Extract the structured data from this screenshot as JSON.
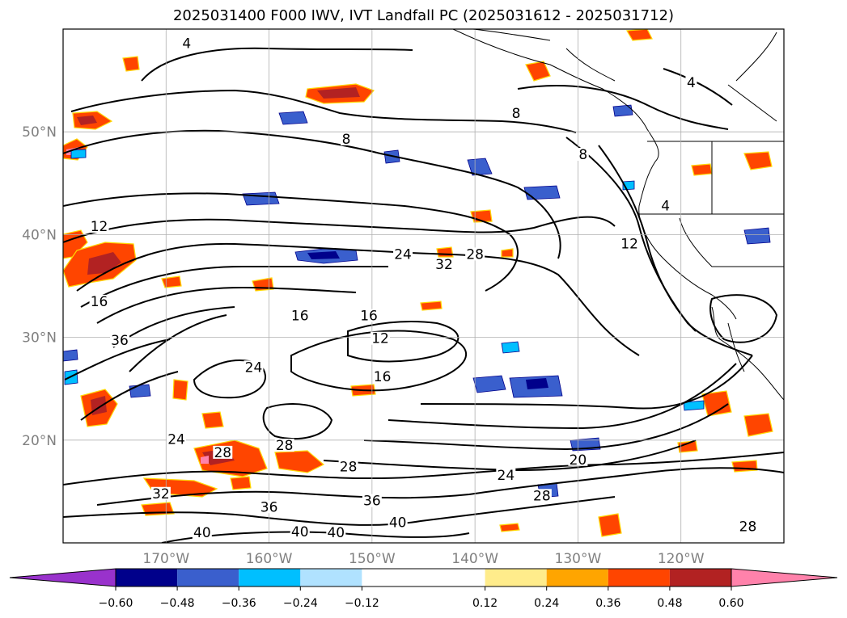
{
  "title": "2025031400 F000 IWV, IVT Landfall PC (2025031612 - 2025031712)",
  "map": {
    "lon_range": [
      -180,
      -110
    ],
    "lat_range": [
      10,
      60
    ],
    "lon_ticks": [
      {
        "value": -170,
        "label": "170°W"
      },
      {
        "value": -160,
        "label": "160°W"
      },
      {
        "value": -150,
        "label": "150°W"
      },
      {
        "value": -140,
        "label": "140°W"
      },
      {
        "value": -130,
        "label": "130°W"
      },
      {
        "value": -120,
        "label": "120°W"
      }
    ],
    "lat_ticks": [
      {
        "value": 50,
        "label": "50°N"
      },
      {
        "value": 40,
        "label": "40°N"
      },
      {
        "value": 30,
        "label": "30°N"
      },
      {
        "value": 20,
        "label": "20°N"
      }
    ],
    "grid": true,
    "iwv_contour_labels": [
      {
        "text": "4",
        "lon": -168,
        "lat": 58.3
      },
      {
        "text": "4",
        "lon": -119,
        "lat": 54.5
      },
      {
        "text": "8",
        "lon": -136,
        "lat": 51.5
      },
      {
        "text": "8",
        "lon": -152.5,
        "lat": 49
      },
      {
        "text": "8",
        "lon": -129.5,
        "lat": 47.5
      },
      {
        "text": "4",
        "lon": -121.5,
        "lat": 42.5
      },
      {
        "text": "12",
        "lon": -176.5,
        "lat": 40.5
      },
      {
        "text": "24",
        "lon": -147,
        "lat": 37.8
      },
      {
        "text": "32",
        "lon": -143,
        "lat": 36.8
      },
      {
        "text": "28",
        "lon": -140,
        "lat": 37.8
      },
      {
        "text": "12",
        "lon": -125,
        "lat": 38.8
      },
      {
        "text": "16",
        "lon": -176.5,
        "lat": 33.2
      },
      {
        "text": "16",
        "lon": -157,
        "lat": 31.8
      },
      {
        "text": "16",
        "lon": -150.3,
        "lat": 31.8
      },
      {
        "text": "12",
        "lon": -149.2,
        "lat": 29.6
      },
      {
        "text": "36",
        "lon": -174.5,
        "lat": 29.4
      },
      {
        "text": "16",
        "lon": -149,
        "lat": 25.9
      },
      {
        "text": "24",
        "lon": -161.5,
        "lat": 26.8
      },
      {
        "text": "20",
        "lon": -130,
        "lat": 17.8
      },
      {
        "text": "24",
        "lon": -169,
        "lat": 19.8
      },
      {
        "text": "28",
        "lon": -164.5,
        "lat": 18.5
      },
      {
        "text": "28",
        "lon": -158.5,
        "lat": 19.2
      },
      {
        "text": "28",
        "lon": -152.3,
        "lat": 17.1
      },
      {
        "text": "24",
        "lon": -137,
        "lat": 16.3
      },
      {
        "text": "28",
        "lon": -133.5,
        "lat": 14.3
      },
      {
        "text": "32",
        "lon": -170.5,
        "lat": 14.5
      },
      {
        "text": "36",
        "lon": -160,
        "lat": 13.2
      },
      {
        "text": "36",
        "lon": -150,
        "lat": 13.8
      },
      {
        "text": "40",
        "lon": -166.5,
        "lat": 10.7
      },
      {
        "text": "40",
        "lon": -157,
        "lat": 10.8
      },
      {
        "text": "40",
        "lon": -153.5,
        "lat": 10.7
      },
      {
        "text": "40",
        "lon": -147.5,
        "lat": 11.7
      },
      {
        "text": "28",
        "lon": -113.5,
        "lat": 11.3
      }
    ]
  },
  "colorbar": {
    "colors": [
      "#9932cc",
      "#00008b",
      "#3a5fcd",
      "#00bfff",
      "#b0e2ff",
      "#ffffff",
      "#ffec8b",
      "#ffa500",
      "#ff4500",
      "#b22222",
      "#ff82ab"
    ],
    "boundaries": [
      -0.72,
      -0.6,
      -0.48,
      -0.36,
      -0.24,
      -0.12,
      0.12,
      0.24,
      0.36,
      0.48,
      0.6,
      0.72
    ],
    "ticks": [
      "−0.60",
      "−0.48",
      "−0.36",
      "−0.24",
      "−0.12",
      "0.12",
      "0.24",
      "0.36",
      "0.48",
      "0.60"
    ],
    "extend": "both"
  }
}
